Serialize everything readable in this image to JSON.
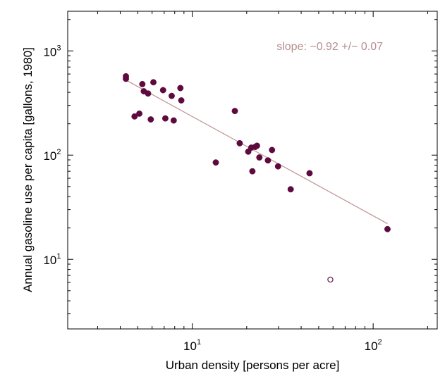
{
  "chart_data": {
    "type": "scatter",
    "xlabel": "Urban density  [persons per acre]",
    "ylabel": "Annual gasoline use per capita  [gallons, 1980]",
    "xscale": "log",
    "yscale": "log",
    "xlim": [
      2.05,
      226
    ],
    "ylim": [
      2.15,
      2400
    ],
    "x_ticks": [
      {
        "base": "10",
        "exp": "1",
        "value": 10
      },
      {
        "base": "10",
        "exp": "2",
        "value": 100
      }
    ],
    "y_ticks": [
      {
        "base": "10",
        "exp": "1",
        "value": 10
      },
      {
        "base": "10",
        "exp": "2",
        "value": 100
      },
      {
        "base": "10",
        "exp": "3",
        "value": 1000
      }
    ],
    "grid": false,
    "annotation": "slope: −0.92 +/− 0.07",
    "colors": {
      "points": "#5e0a3e",
      "fit_line": "#c09090",
      "annotation": "#b58e8e"
    },
    "series": [
      {
        "marker": "filled-circle",
        "points": [
          {
            "x": 4.3,
            "y": 570
          },
          {
            "x": 4.3,
            "y": 540
          },
          {
            "x": 4.8,
            "y": 235
          },
          {
            "x": 5.1,
            "y": 250
          },
          {
            "x": 5.3,
            "y": 480
          },
          {
            "x": 5.4,
            "y": 410
          },
          {
            "x": 5.7,
            "y": 390
          },
          {
            "x": 5.9,
            "y": 220
          },
          {
            "x": 6.1,
            "y": 500
          },
          {
            "x": 6.9,
            "y": 420
          },
          {
            "x": 7.1,
            "y": 225
          },
          {
            "x": 7.7,
            "y": 370
          },
          {
            "x": 7.9,
            "y": 215
          },
          {
            "x": 8.6,
            "y": 440
          },
          {
            "x": 8.7,
            "y": 335
          },
          {
            "x": 13.5,
            "y": 85
          },
          {
            "x": 17.2,
            "y": 265
          },
          {
            "x": 18.3,
            "y": 130
          },
          {
            "x": 20.4,
            "y": 108
          },
          {
            "x": 21.2,
            "y": 118
          },
          {
            "x": 21.5,
            "y": 70
          },
          {
            "x": 22.3,
            "y": 120
          },
          {
            "x": 22.8,
            "y": 123
          },
          {
            "x": 23.5,
            "y": 95
          },
          {
            "x": 26.2,
            "y": 89
          },
          {
            "x": 27.6,
            "y": 112
          },
          {
            "x": 29.8,
            "y": 78
          },
          {
            "x": 35.0,
            "y": 47
          },
          {
            "x": 44.5,
            "y": 67
          },
          {
            "x": 120,
            "y": 19.5
          }
        ]
      },
      {
        "marker": "open-circle",
        "points": [
          {
            "x": 58,
            "y": 6.4
          }
        ]
      }
    ],
    "fit_line": {
      "x": [
        4.3,
        120
      ],
      "y": [
        525,
        22
      ]
    }
  }
}
